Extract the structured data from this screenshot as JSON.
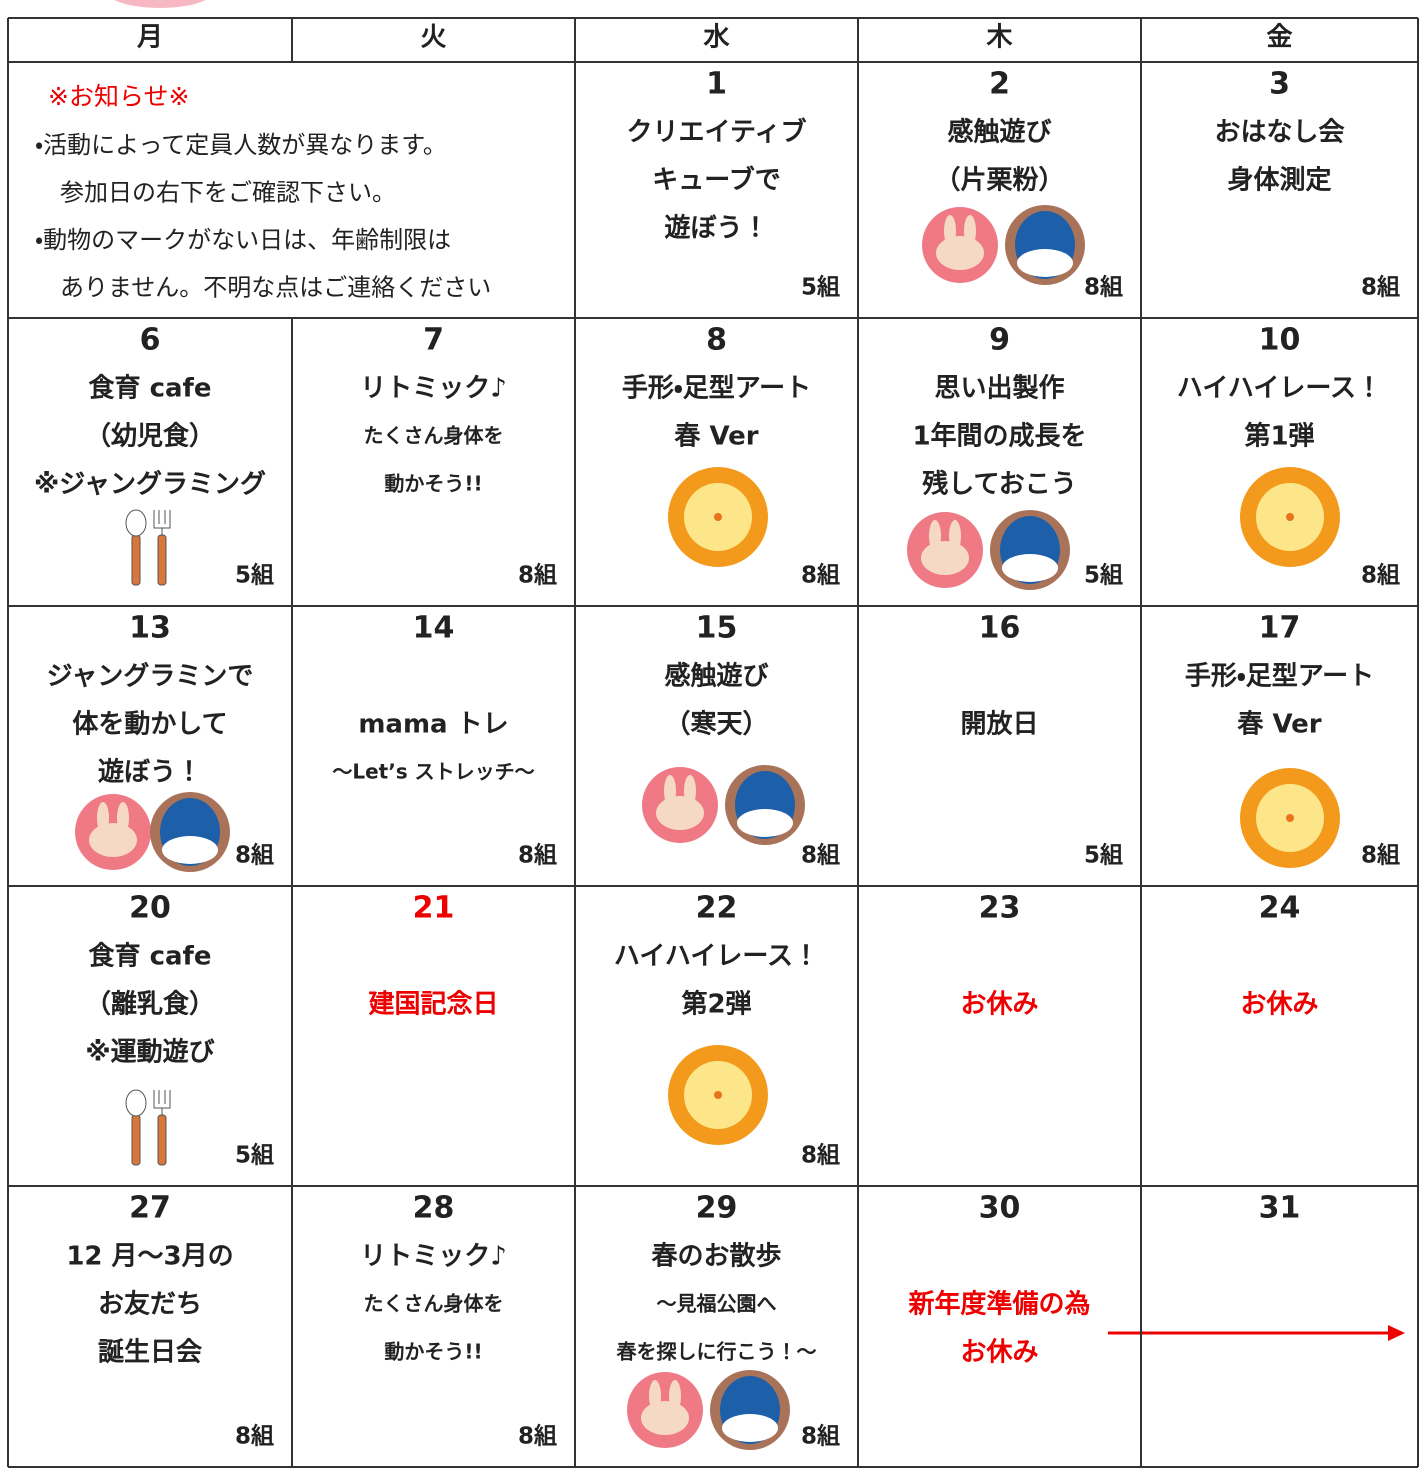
{
  "header": {
    "days": [
      "月",
      "火",
      "水",
      "木",
      "金"
    ]
  },
  "notice": {
    "title": "※お知らせ※",
    "lines": [
      "・活動によって定員人数が異なります。",
      "参加日の右下をご確認下さい。",
      "・動物のマークがない日は、年齢制限は",
      "ありません。不明な点はご連絡ください"
    ]
  },
  "weeks": [
    {
      "cells": [
        {
          "date": "1",
          "lines": [
            "クリエイティブ",
            "キューブで",
            "遊ぼう！"
          ],
          "capacity": "5組"
        },
        {
          "date": "2",
          "lines": [
            "感触遊び",
            "（片栗粉）"
          ],
          "capacity": "8組"
        },
        {
          "date": "3",
          "lines": [
            "おはなし会",
            "身体測定"
          ],
          "capacity": "8組"
        }
      ]
    },
    {
      "cells": [
        {
          "date": "6",
          "lines": [
            "食育 cafe",
            "（幼児食）",
            "※ジャングラミング"
          ],
          "capacity": "5組"
        },
        {
          "date": "7",
          "lines": [
            "リトミック♪",
            "たくさん身体を",
            "動かそう!!"
          ],
          "capacity": "8組"
        },
        {
          "date": "8",
          "lines": [
            "手形・足型アート",
            "春 Ver"
          ],
          "capacity": "8組"
        },
        {
          "date": "9",
          "lines": [
            "思い出製作",
            "1年間の成長を",
            "残しておこう"
          ],
          "capacity": "5組"
        },
        {
          "date": "10",
          "lines": [
            "ハイハイレース！",
            "第1弾"
          ],
          "capacity": "8組"
        }
      ]
    },
    {
      "cells": [
        {
          "date": "13",
          "lines": [
            "ジャングラミンで",
            "体を動かして",
            "遊ぼう！"
          ],
          "capacity": "8組"
        },
        {
          "date": "14",
          "lines": [
            "mama トレ",
            "～Let’s ストレッチ～"
          ],
          "capacity": "8組"
        },
        {
          "date": "15",
          "lines": [
            "感触遊び",
            "（寒天）"
          ],
          "capacity": "8組"
        },
        {
          "date": "16",
          "lines": [
            "開放日"
          ],
          "capacity": "5組"
        },
        {
          "date": "17",
          "lines": [
            "手形・足型アート",
            "春 Ver"
          ],
          "capacity": "8組"
        }
      ]
    },
    {
      "cells": [
        {
          "date": "20",
          "lines": [
            "食育 cafe",
            "（離乳食）",
            "※運動遊び"
          ],
          "capacity": "5組"
        },
        {
          "date": "21",
          "lines": [
            "建国記念日"
          ]
        },
        {
          "date": "22",
          "lines": [
            "ハイハイレース！",
            "第2弾"
          ],
          "capacity": "8組"
        },
        {
          "date": "23",
          "lines": [
            "お休み"
          ]
        },
        {
          "date": "24",
          "lines": [
            "お休み"
          ]
        }
      ]
    },
    {
      "cells": [
        {
          "date": "27",
          "lines": [
            "12 月～3月の",
            "お友だち",
            "誕生日会"
          ],
          "capacity": "8組"
        },
        {
          "date": "28",
          "lines": [
            "リトミック♪",
            "たくさん身体を",
            "動かそう!!"
          ],
          "capacity": "8組"
        },
        {
          "date": "29",
          "lines": [
            "春のお散歩",
            "～見福公園へ",
            "春を探しに行こう！～"
          ],
          "capacity": "8組"
        },
        {
          "date": "30",
          "lines": [
            "新年度準備の為",
            "お休み"
          ]
        },
        {
          "date": "31"
        }
      ]
    }
  ]
}
